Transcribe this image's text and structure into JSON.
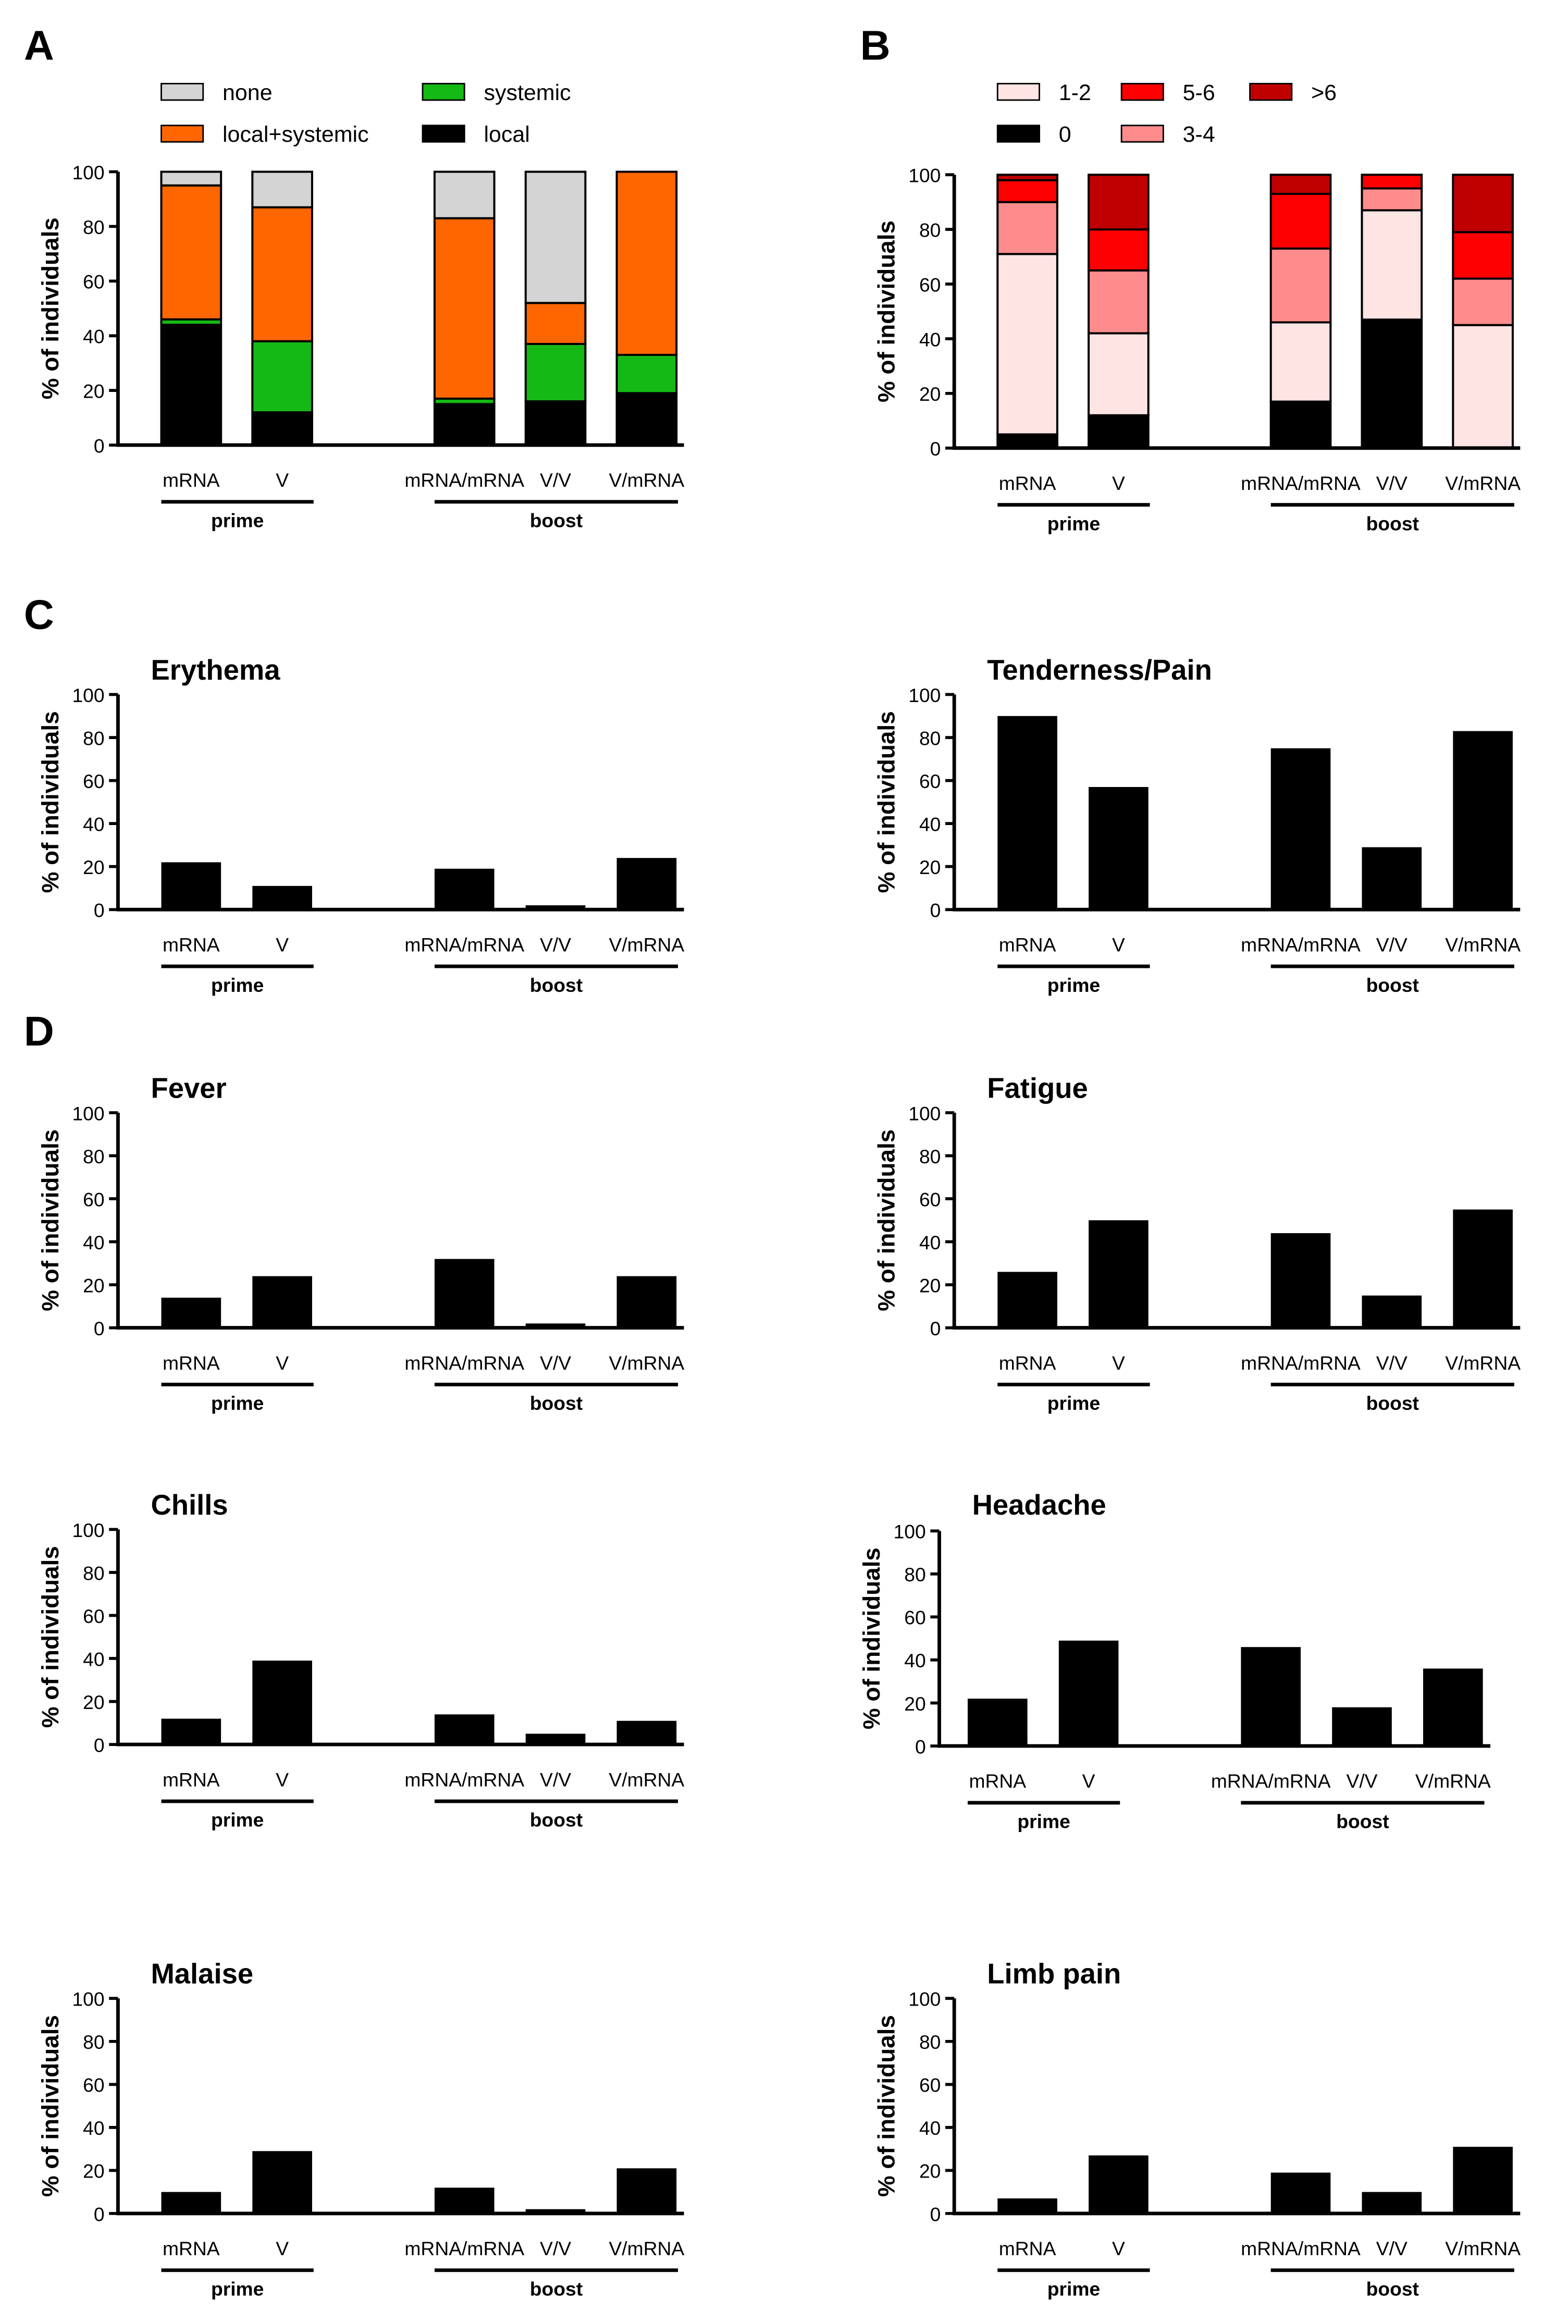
{
  "panel_labels": [
    "A",
    "B",
    "C",
    "D"
  ],
  "axis": {
    "ylabel": "% of individuals",
    "yticks": [
      "0",
      "20",
      "40",
      "60",
      "80",
      "100"
    ],
    "ylim": [
      0,
      100
    ]
  },
  "groups": {
    "categories": [
      "mRNA",
      "V",
      "mRNA/mRNA",
      "V/V",
      "V/mRNA"
    ],
    "prime_label": "prime",
    "boost_label": "boost"
  },
  "legend_a": [
    {
      "label": "none",
      "color": "#d4d4d4"
    },
    {
      "label": "systemic",
      "color": "#15b915"
    },
    {
      "label": "local+systemic",
      "color": "#ff6600"
    },
    {
      "label": "local",
      "color": "#000000"
    }
  ],
  "legend_b": [
    {
      "label": "1-2",
      "color": "#ffe4e4"
    },
    {
      "label": "5-6",
      "color": "#ff0000"
    },
    {
      "label": ">6",
      "color": "#c00000"
    },
    {
      "label": "0",
      "color": "#000000"
    },
    {
      "label": "3-4",
      "color": "#ff8c8c"
    }
  ],
  "chart_data": [
    {
      "panel": "A",
      "type": "bar",
      "stacked": true,
      "title": "",
      "categories": [
        "mRNA",
        "V",
        "mRNA/mRNA",
        "V/V",
        "V/mRNA"
      ],
      "series": [
        {
          "name": "local",
          "color": "#000000",
          "values": [
            44,
            12,
            15,
            16,
            19
          ]
        },
        {
          "name": "systemic",
          "color": "#15b915",
          "values": [
            2,
            26,
            2,
            21,
            14
          ]
        },
        {
          "name": "local+systemic",
          "color": "#ff6600",
          "values": [
            49,
            49,
            66,
            15,
            67
          ]
        },
        {
          "name": "none",
          "color": "#d4d4d4",
          "values": [
            5,
            13,
            17,
            48,
            0
          ]
        }
      ],
      "ylabel": "% of individuals",
      "ylim": [
        0,
        100
      ]
    },
    {
      "panel": "B",
      "type": "bar",
      "stacked": true,
      "title": "",
      "categories": [
        "mRNA",
        "V",
        "mRNA/mRNA",
        "V/V",
        "V/mRNA"
      ],
      "series": [
        {
          "name": "0",
          "color": "#000000",
          "values": [
            5,
            12,
            17,
            47,
            0
          ]
        },
        {
          "name": "1-2",
          "color": "#ffe4e4",
          "values": [
            66,
            30,
            29,
            40,
            45
          ]
        },
        {
          "name": "3-4",
          "color": "#ff8c8c",
          "values": [
            19,
            23,
            27,
            8,
            17
          ]
        },
        {
          "name": "5-6",
          "color": "#ff0000",
          "values": [
            8,
            15,
            20,
            5,
            17
          ]
        },
        {
          "name": ">6",
          "color": "#c00000",
          "values": [
            2,
            20,
            7,
            0,
            21
          ]
        }
      ],
      "ylabel": "% of individuals",
      "ylim": [
        0,
        100
      ]
    },
    {
      "panel": "C",
      "type": "bar",
      "title": "Erythema",
      "categories": [
        "mRNA",
        "V",
        "mRNA/mRNA",
        "V/V",
        "V/mRNA"
      ],
      "values": [
        22,
        11,
        19,
        2,
        24
      ],
      "ylabel": "% of individuals",
      "ylim": [
        0,
        100
      ]
    },
    {
      "panel": "C",
      "type": "bar",
      "title": "Tenderness/Pain",
      "categories": [
        "mRNA",
        "V",
        "mRNA/mRNA",
        "V/V",
        "V/mRNA"
      ],
      "values": [
        90,
        57,
        75,
        29,
        83
      ],
      "ylabel": "% of individuals",
      "ylim": [
        0,
        100
      ]
    },
    {
      "panel": "D",
      "type": "bar",
      "title": "Fever",
      "categories": [
        "mRNA",
        "V",
        "mRNA/mRNA",
        "V/V",
        "V/mRNA"
      ],
      "values": [
        14,
        24,
        32,
        2,
        24
      ],
      "ylabel": "% of individuals",
      "ylim": [
        0,
        100
      ]
    },
    {
      "panel": "D",
      "type": "bar",
      "title": "Fatigue",
      "categories": [
        "mRNA",
        "V",
        "mRNA/mRNA",
        "V/V",
        "V/mRNA"
      ],
      "values": [
        26,
        50,
        44,
        15,
        55
      ],
      "ylabel": "% of individuals",
      "ylim": [
        0,
        100
      ]
    },
    {
      "panel": "D",
      "type": "bar",
      "title": "Chills",
      "categories": [
        "mRNA",
        "V",
        "mRNA/mRNA",
        "V/V",
        "V/mRNA"
      ],
      "values": [
        12,
        39,
        14,
        5,
        11
      ],
      "ylabel": "% of individuals",
      "ylim": [
        0,
        100
      ]
    },
    {
      "panel": "D",
      "type": "bar",
      "title": "Headache",
      "categories": [
        "mRNA",
        "V",
        "mRNA/mRNA",
        "V/V",
        "V/mRNA"
      ],
      "values": [
        22,
        49,
        46,
        18,
        36
      ],
      "ylabel": "% of individuals",
      "ylim": [
        0,
        100
      ]
    },
    {
      "panel": "D",
      "type": "bar",
      "title": "Malaise",
      "categories": [
        "mRNA",
        "V",
        "mRNA/mRNA",
        "V/V",
        "V/mRNA"
      ],
      "values": [
        10,
        29,
        12,
        2,
        21
      ],
      "ylabel": "% of individuals",
      "ylim": [
        0,
        100
      ]
    },
    {
      "panel": "D",
      "type": "bar",
      "title": "Limb pain",
      "categories": [
        "mRNA",
        "V",
        "mRNA/mRNA",
        "V/V",
        "V/mRNA"
      ],
      "values": [
        7,
        27,
        19,
        10,
        31
      ],
      "ylabel": "% of individuals",
      "ylim": [
        0,
        100
      ]
    }
  ]
}
